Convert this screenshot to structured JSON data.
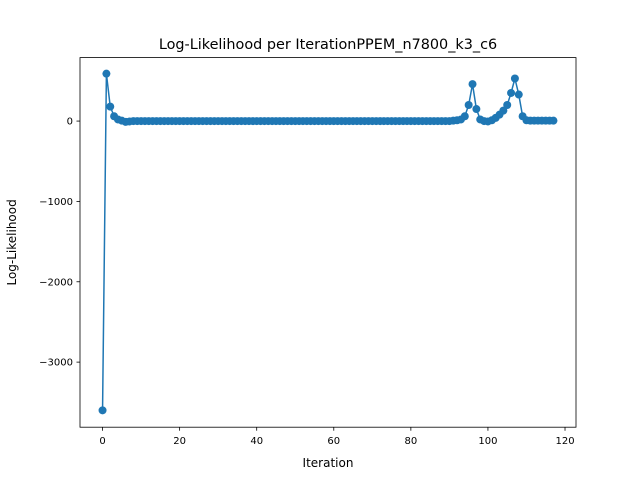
{
  "chart_data": {
    "type": "line",
    "title": "Log-Likelihood per IterationPPEM_n7800_k3_c6",
    "xlabel": "Iteration",
    "ylabel": "Log-Likelihood",
    "xlim": [
      -5.85,
      122.85
    ],
    "ylim": [
      -3810,
      790
    ],
    "xticks": [
      0,
      20,
      40,
      60,
      80,
      100,
      120
    ],
    "xtick_labels": [
      "0",
      "20",
      "40",
      "60",
      "80",
      "100",
      "120"
    ],
    "yticks": [
      -3000,
      -2000,
      -1000,
      0
    ],
    "ytick_labels": [
      "−3000",
      "−2000",
      "−1000",
      "0"
    ],
    "grid": false,
    "color": "#1f77b4",
    "series": [
      {
        "x": [
          0,
          1,
          2,
          3,
          4,
          5,
          6,
          7,
          8,
          9,
          10,
          11,
          12,
          13,
          14,
          15,
          16,
          17,
          18,
          19,
          20,
          21,
          22,
          23,
          24,
          25,
          26,
          27,
          28,
          29,
          30,
          31,
          32,
          33,
          34,
          35,
          36,
          37,
          38,
          39,
          40,
          41,
          42,
          43,
          44,
          45,
          46,
          47,
          48,
          49,
          50,
          51,
          52,
          53,
          54,
          55,
          56,
          57,
          58,
          59,
          60,
          61,
          62,
          63,
          64,
          65,
          66,
          67,
          68,
          69,
          70,
          71,
          72,
          73,
          74,
          75,
          76,
          77,
          78,
          79,
          80,
          81,
          82,
          83,
          84,
          85,
          86,
          87,
          88,
          89,
          90,
          91,
          92,
          93,
          94,
          95,
          96,
          97,
          98,
          99,
          100,
          101,
          102,
          103,
          104,
          105,
          106,
          107,
          108,
          109,
          110,
          111,
          112,
          113,
          114,
          115,
          116,
          117
        ],
        "y": [
          -3600,
          590,
          180,
          60,
          20,
          5,
          -10,
          -5,
          0,
          0,
          0,
          0,
          0,
          0,
          0,
          0,
          0,
          0,
          0,
          0,
          0,
          0,
          0,
          0,
          0,
          0,
          0,
          0,
          0,
          0,
          0,
          0,
          0,
          0,
          0,
          0,
          0,
          0,
          0,
          0,
          0,
          0,
          0,
          0,
          0,
          0,
          0,
          0,
          0,
          0,
          0,
          0,
          0,
          0,
          0,
          0,
          0,
          0,
          0,
          0,
          0,
          0,
          0,
          0,
          0,
          0,
          0,
          0,
          0,
          0,
          0,
          0,
          0,
          0,
          0,
          0,
          0,
          0,
          0,
          0,
          0,
          0,
          0,
          0,
          0,
          0,
          0,
          0,
          0,
          0,
          0,
          5,
          10,
          20,
          60,
          200,
          460,
          150,
          20,
          0,
          -5,
          10,
          40,
          80,
          130,
          200,
          350,
          530,
          330,
          60,
          10,
          5,
          5,
          5,
          5,
          5,
          5,
          5
        ]
      }
    ]
  }
}
